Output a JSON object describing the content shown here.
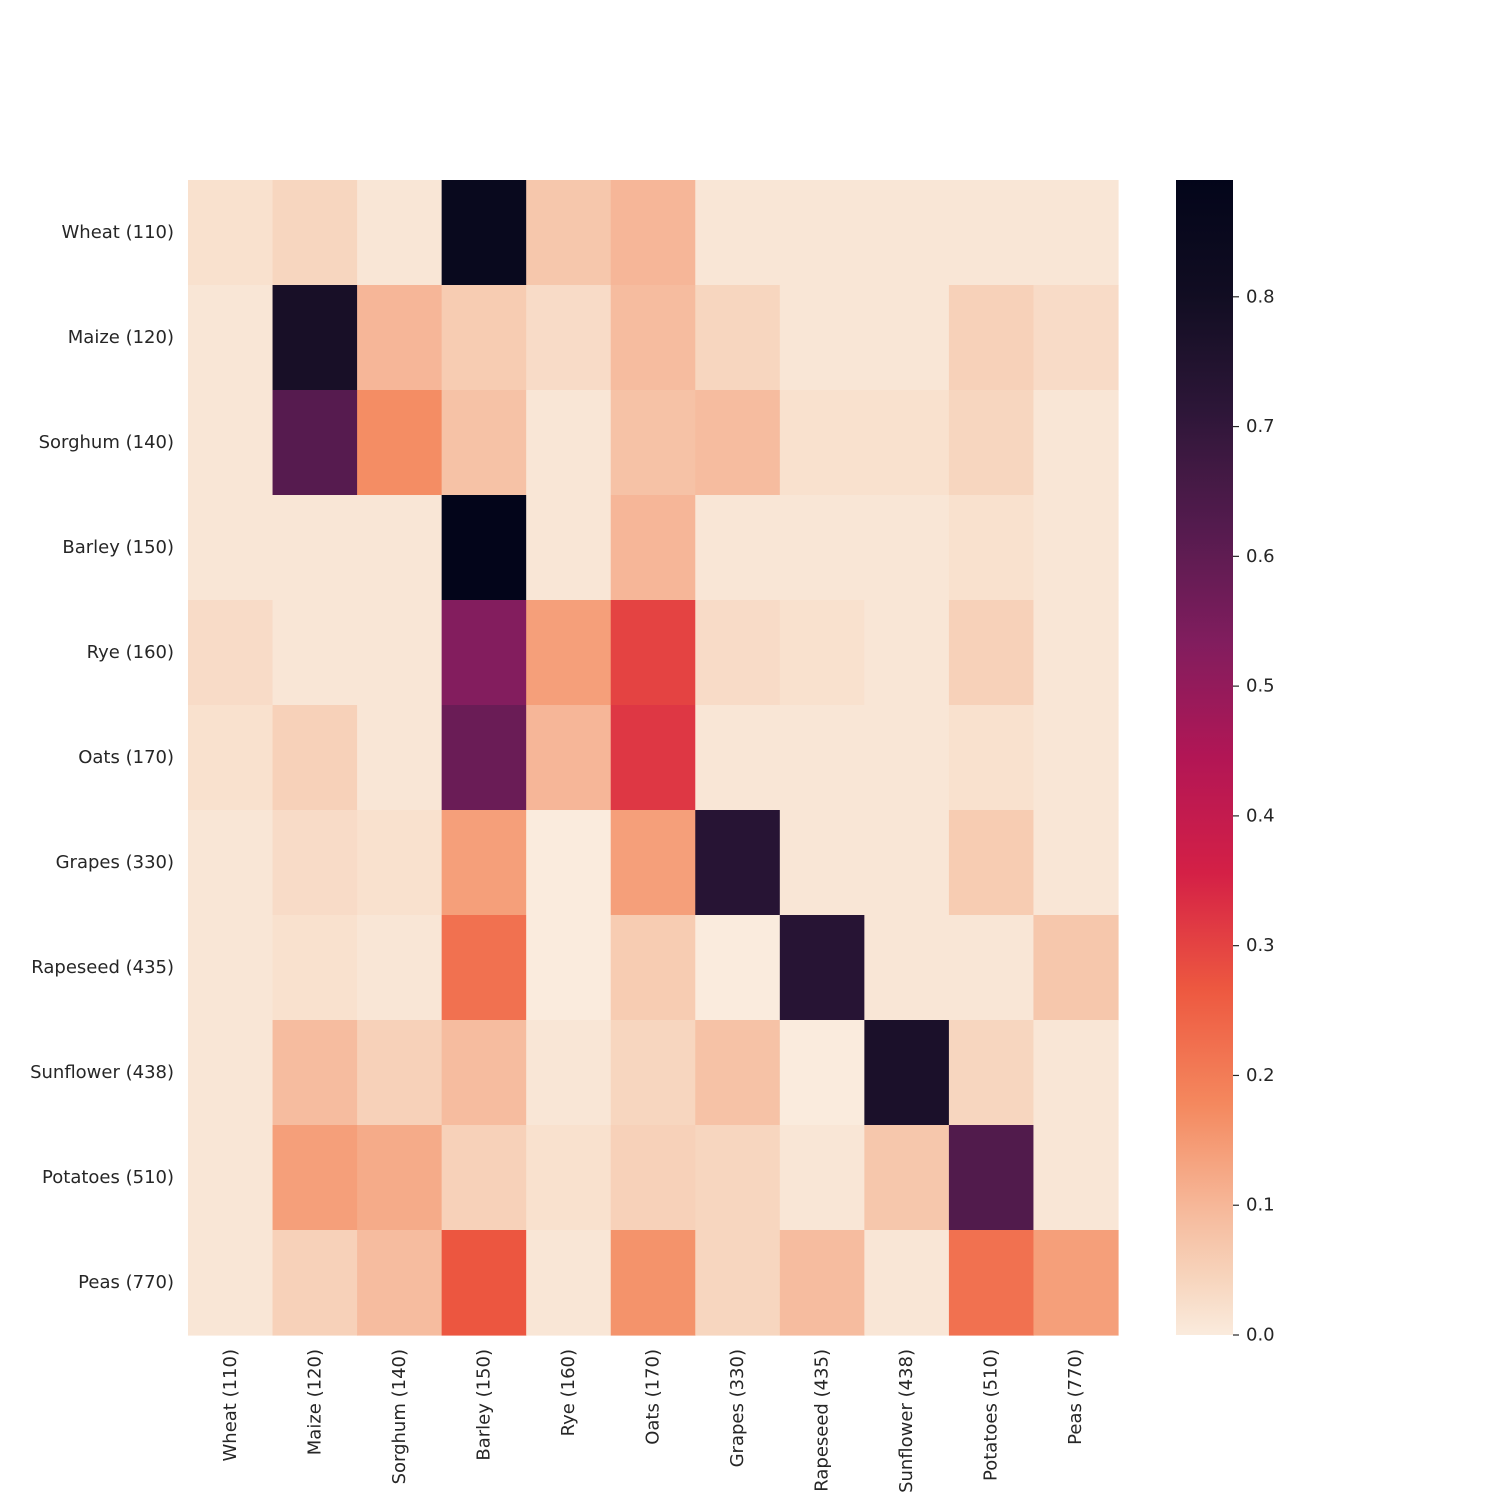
{
  "chart_data": {
    "type": "heatmap",
    "title": "",
    "xlabel": "",
    "ylabel": "",
    "rows": [
      "Wheat (110)",
      "Maize (120)",
      "Sorghum (140)",
      "Barley (150)",
      "Rye (160)",
      "Oats (170)",
      "Grapes (330)",
      "Rapeseed (435)",
      "Sunflower (438)",
      "Potatoes (510)",
      "Peas (770)"
    ],
    "columns": [
      "Wheat (110)",
      "Maize (120)",
      "Sorghum (140)",
      "Barley (150)",
      "Rye (160)",
      "Oats (170)",
      "Grapes (330)",
      "Rapeseed (435)",
      "Sunflower (438)",
      "Potatoes (510)",
      "Peas (770)"
    ],
    "values": [
      [
        0.02,
        0.04,
        0.01,
        0.85,
        0.07,
        0.1,
        0.01,
        0.01,
        0.01,
        0.01,
        0.01
      ],
      [
        0.01,
        0.78,
        0.1,
        0.06,
        0.03,
        0.09,
        0.04,
        0.01,
        0.01,
        0.05,
        0.03
      ],
      [
        0.01,
        0.62,
        0.17,
        0.08,
        0.01,
        0.08,
        0.09,
        0.02,
        0.02,
        0.04,
        0.01
      ],
      [
        0.01,
        0.01,
        0.01,
        0.89,
        0.01,
        0.1,
        0.01,
        0.01,
        0.01,
        0.02,
        0.01
      ],
      [
        0.03,
        0.01,
        0.01,
        0.53,
        0.14,
        0.3,
        0.03,
        0.02,
        0.01,
        0.05,
        0.01
      ],
      [
        0.02,
        0.05,
        0.01,
        0.58,
        0.1,
        0.32,
        0.01,
        0.01,
        0.01,
        0.02,
        0.01
      ],
      [
        0.01,
        0.03,
        0.02,
        0.14,
        0.0,
        0.14,
        0.73,
        0.01,
        0.01,
        0.06,
        0.01
      ],
      [
        0.01,
        0.02,
        0.01,
        0.22,
        0.0,
        0.06,
        0.0,
        0.73,
        0.01,
        0.01,
        0.07
      ],
      [
        0.01,
        0.09,
        0.05,
        0.09,
        0.01,
        0.04,
        0.08,
        0.0,
        0.77,
        0.04,
        0.01
      ],
      [
        0.01,
        0.14,
        0.12,
        0.05,
        0.02,
        0.05,
        0.04,
        0.01,
        0.07,
        0.63,
        0.01
      ],
      [
        0.01,
        0.05,
        0.09,
        0.27,
        0.01,
        0.16,
        0.04,
        0.09,
        0.01,
        0.22,
        0.14
      ]
    ],
    "colorbar": {
      "vmin": 0.0,
      "vmax": 0.89,
      "ticks": [
        0.0,
        0.1,
        0.2,
        0.3,
        0.4,
        0.5,
        0.6,
        0.7,
        0.8
      ],
      "tick_labels": [
        "0.0",
        "0.1",
        "0.2",
        "0.3",
        "0.4",
        "0.5",
        "0.6",
        "0.7",
        "0.8"
      ],
      "colormap": "rocket_r"
    },
    "grid": false,
    "legend": "colorbar-right"
  }
}
